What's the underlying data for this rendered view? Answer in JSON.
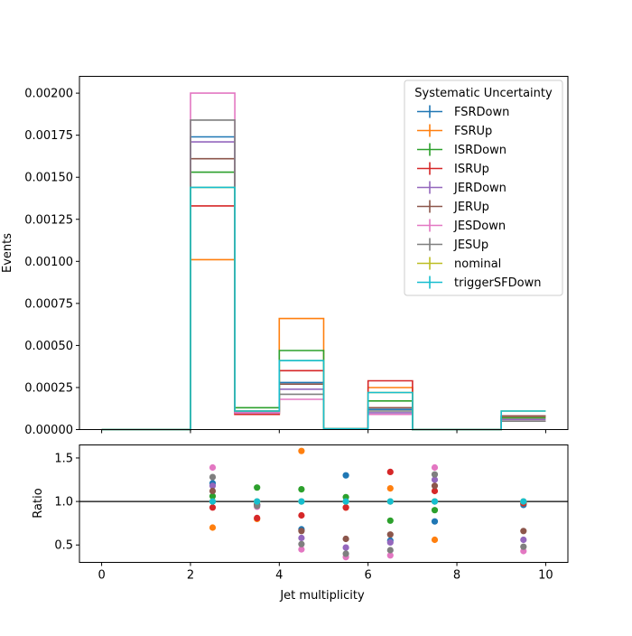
{
  "chart_data": [
    {
      "type": "step",
      "title": "",
      "xlabel": "",
      "ylabel": "Events",
      "xlim": [
        -0.5,
        10.5
      ],
      "ylim": [
        0,
        0.0021
      ],
      "yticks": [
        0,
        0.00025,
        0.0005,
        0.00075,
        0.001,
        0.00125,
        0.0015,
        0.00175,
        0.002
      ],
      "ytick_labels": [
        "0.00000",
        "0.00025",
        "0.00050",
        "0.00075",
        "0.00100",
        "0.00125",
        "0.00150",
        "0.00175",
        "0.00200"
      ],
      "xticks": [
        0,
        2,
        4,
        6,
        8,
        10
      ],
      "bin_edges": [
        0,
        1,
        2,
        3,
        4,
        5,
        6,
        7,
        8,
        9,
        10
      ],
      "legend": {
        "title": "Systematic Uncertainty",
        "placement": "top-right"
      },
      "series": [
        {
          "name": "FSRDown",
          "color": "#1f77b4",
          "values": [
            0,
            0,
            0.00174,
            0.0001,
            0.00028,
            5e-06,
            0.00012,
            0,
            0,
            8e-05
          ]
        },
        {
          "name": "FSRUp",
          "color": "#ff7f0e",
          "values": [
            0,
            0,
            0.00101,
            9e-05,
            0.00066,
            5e-06,
            0.00025,
            0,
            0,
            7e-05
          ]
        },
        {
          "name": "ISRDown",
          "color": "#2ca02c",
          "values": [
            0,
            0,
            0.00153,
            0.00013,
            0.00047,
            5e-06,
            0.00017,
            0,
            0,
            7e-05
          ]
        },
        {
          "name": "ISRUp",
          "color": "#d62728",
          "values": [
            0,
            0,
            0.00133,
            9e-05,
            0.00035,
            5e-06,
            0.00029,
            0,
            0,
            8e-05
          ]
        },
        {
          "name": "JERDown",
          "color": "#9467bd",
          "values": [
            0,
            0,
            0.00171,
            0.0001,
            0.00024,
            5e-06,
            0.0001,
            0,
            0,
            6e-05
          ]
        },
        {
          "name": "JERUp",
          "color": "#8c564b",
          "values": [
            0,
            0,
            0.00161,
            0.00011,
            0.00027,
            5e-06,
            0.00013,
            0,
            0,
            8e-05
          ]
        },
        {
          "name": "JESDown",
          "color": "#e377c2",
          "values": [
            0,
            0,
            0.002,
            0.0001,
            0.00018,
            5e-06,
            9e-05,
            0,
            0,
            5e-05
          ]
        },
        {
          "name": "JESUp",
          "color": "#7f7f7f",
          "values": [
            0,
            0,
            0.00184,
            0.00011,
            0.00021,
            5e-06,
            0.00011,
            0,
            0,
            5e-05
          ]
        },
        {
          "name": "nominal",
          "color": "#bcbd22",
          "values": [
            0,
            0,
            0.00144,
            0.00011,
            0.00041,
            5e-06,
            0.00022,
            0,
            0,
            0.00011
          ]
        },
        {
          "name": "triggerSFDown",
          "color": "#17becf",
          "values": [
            0,
            0,
            0.00144,
            0.00011,
            0.00041,
            5e-06,
            0.00022,
            0,
            0,
            0.00011
          ]
        }
      ]
    },
    {
      "type": "scatter",
      "title": "",
      "xlabel": "Jet multiplicity",
      "ylabel": "Ratio",
      "xlim": [
        -0.5,
        10.5
      ],
      "ylim": [
        0.3,
        1.65
      ],
      "yticks": [
        0.5,
        1.0,
        1.5
      ],
      "ytick_labels": [
        "0.5",
        "1.0",
        "1.5"
      ],
      "xticks": [
        0,
        2,
        4,
        6,
        8,
        10
      ],
      "xtick_labels": [
        "0",
        "2",
        "4",
        "6",
        "8",
        "10"
      ],
      "reference_line": 1.0,
      "x": [
        2.5,
        3.5,
        4.5,
        5.5,
        6.5,
        7.5,
        9.5
      ],
      "series": [
        {
          "name": "FSRDown",
          "color": "#1f77b4",
          "values": [
            1.21,
            0.96,
            0.68,
            1.3,
            0.55,
            0.77,
            0.96
          ]
        },
        {
          "name": "FSRUp",
          "color": "#ff7f0e",
          "values": [
            0.7,
            0.8,
            1.58,
            0.93,
            1.15,
            0.56,
            0.98
          ]
        },
        {
          "name": "ISRDown",
          "color": "#2ca02c",
          "values": [
            1.06,
            1.16,
            1.14,
            1.05,
            0.78,
            0.9,
            0.98
          ]
        },
        {
          "name": "ISRUp",
          "color": "#d62728",
          "values": [
            0.93,
            0.81,
            0.84,
            0.93,
            1.34,
            1.12,
            0.98
          ]
        },
        {
          "name": "JERDown",
          "color": "#9467bd",
          "values": [
            1.18,
            0.96,
            0.58,
            0.47,
            0.53,
            1.25,
            0.56
          ]
        },
        {
          "name": "JERUp",
          "color": "#8c564b",
          "values": [
            1.12,
            0.97,
            0.66,
            0.57,
            0.62,
            1.18,
            0.66
          ]
        },
        {
          "name": "JESDown",
          "color": "#e377c2",
          "values": [
            1.39,
            0.94,
            0.45,
            0.36,
            0.38,
            1.39,
            0.43
          ]
        },
        {
          "name": "JESUp",
          "color": "#7f7f7f",
          "values": [
            1.28,
            0.95,
            0.51,
            0.4,
            0.44,
            1.31,
            0.48
          ]
        },
        {
          "name": "nominal",
          "color": "#bcbd22",
          "values": [
            1.0,
            1.0,
            1.0,
            1.0,
            1.0,
            1.0,
            1.0
          ]
        },
        {
          "name": "triggerSFDown",
          "color": "#17becf",
          "values": [
            1.0,
            1.0,
            1.0,
            1.0,
            1.0,
            1.0,
            1.0
          ]
        }
      ]
    }
  ]
}
